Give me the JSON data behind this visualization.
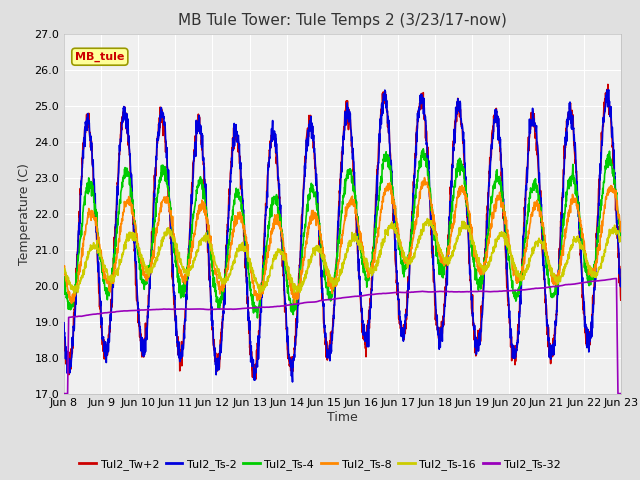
{
  "title": "MB Tule Tower: Tule Temps 2 (3/23/17-now)",
  "xlabel": "Time",
  "ylabel": "Temperature (C)",
  "ylim": [
    17.0,
    27.0
  ],
  "yticks": [
    17.0,
    18.0,
    19.0,
    20.0,
    21.0,
    22.0,
    23.0,
    24.0,
    25.0,
    26.0,
    27.0
  ],
  "xtick_labels": [
    "Jun 8",
    "Jun 9",
    "Jun 10",
    "Jun 11",
    "Jun 12",
    "Jun 13",
    "Jun 14",
    "Jun 15",
    "Jun 16",
    "Jun 17",
    "Jun 18",
    "Jun 19",
    "Jun 20",
    "Jun 21",
    "Jun 22",
    "Jun 23"
  ],
  "n_days": 15,
  "annotation_text": "MB_tule",
  "annotation_color": "#cc0000",
  "annotation_bg": "#ffff99",
  "annotation_border": "#999900",
  "legend_entries": [
    "Tul2_Tw+2",
    "Tul2_Ts-2",
    "Tul2_Ts-4",
    "Tul2_Ts-8",
    "Tul2_Ts-16",
    "Tul2_Ts-32"
  ],
  "line_colors": [
    "#cc0000",
    "#0000dd",
    "#00cc00",
    "#ff8800",
    "#cccc00",
    "#9900bb"
  ],
  "background_color": "#e0e0e0",
  "plot_bg": "#f0f0f0",
  "grid_color": "#ffffff",
  "title_fontsize": 11,
  "label_fontsize": 9,
  "tick_fontsize": 8
}
